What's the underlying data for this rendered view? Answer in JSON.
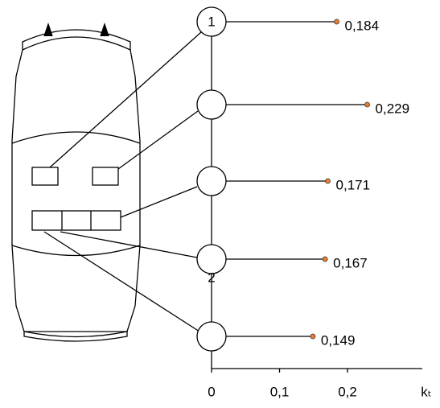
{
  "chart_data": {
    "type": "dot",
    "categories": [
      "1",
      null,
      null,
      "2",
      null
    ],
    "values": [
      0.184,
      0.229,
      0.171,
      0.167,
      0.149
    ],
    "value_labels": [
      "0,184",
      "0,229",
      "0,171",
      "0,167",
      "0,149"
    ],
    "color": "#ed7d31",
    "xlabel": "kₜ",
    "xlim": [
      0,
      0.31
    ],
    "xticks": [
      0,
      {
        "value": 0.1,
        "label": "0,1"
      },
      {
        "value": 0.2,
        "label": "0,2"
      }
    ]
  }
}
